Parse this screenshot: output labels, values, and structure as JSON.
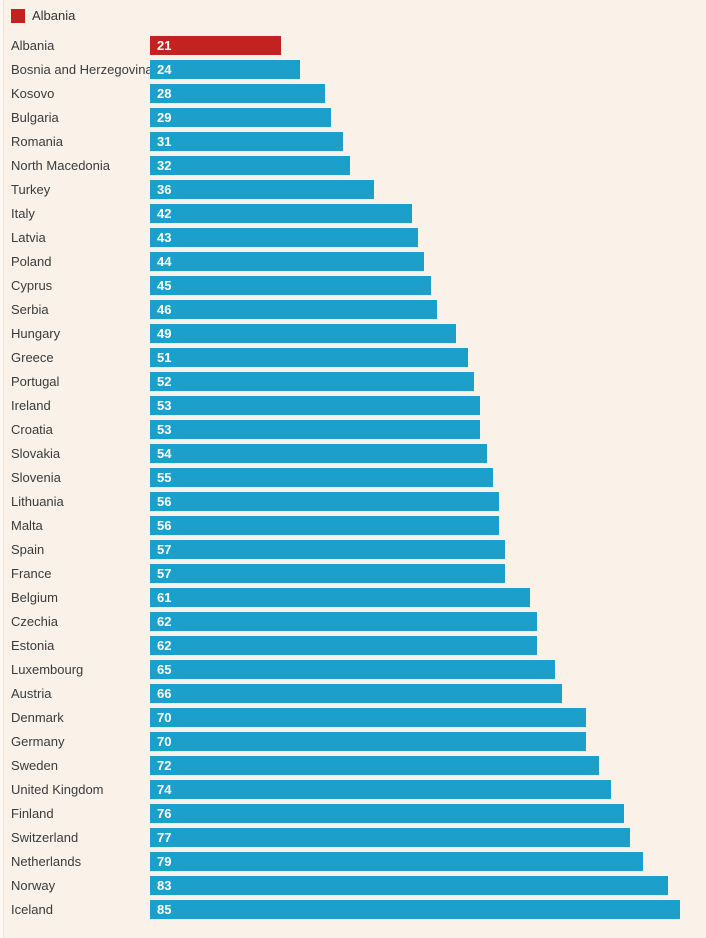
{
  "legend": {
    "label": "Albania"
  },
  "chart_data": {
    "type": "bar",
    "orientation": "horizontal",
    "title": "",
    "xlabel": "",
    "ylabel": "",
    "xlim": [
      0,
      85
    ],
    "grid": false,
    "legend_position": "top-left",
    "value_labels": true,
    "highlight_category": "Albania",
    "highlight_color": "#c42121",
    "bar_color": "#1aa0ca",
    "background_color": "#faf1e8",
    "label_color": "#3b3b3b",
    "value_label_color": "#ffffff",
    "categories": [
      "Albania",
      "Bosnia and Herzegovina",
      "Kosovo",
      "Bulgaria",
      "Romania",
      "North Macedonia",
      "Turkey",
      "Italy",
      "Latvia",
      "Poland",
      "Cyprus",
      "Serbia",
      "Hungary",
      "Greece",
      "Portugal",
      "Ireland",
      "Croatia",
      "Slovakia",
      "Slovenia",
      "Lithuania",
      "Malta",
      "Spain",
      "France",
      "Belgium",
      "Czechia",
      "Estonia",
      "Luxembourg",
      "Austria",
      "Denmark",
      "Germany",
      "Sweden",
      "United Kingdom",
      "Finland",
      "Switzerland",
      "Netherlands",
      "Norway",
      "Iceland"
    ],
    "values": [
      21,
      24,
      28,
      29,
      31,
      32,
      36,
      42,
      43,
      44,
      45,
      46,
      49,
      51,
      52,
      53,
      53,
      54,
      55,
      56,
      56,
      57,
      57,
      61,
      62,
      62,
      65,
      66,
      70,
      70,
      72,
      74,
      76,
      77,
      79,
      83,
      85
    ]
  }
}
